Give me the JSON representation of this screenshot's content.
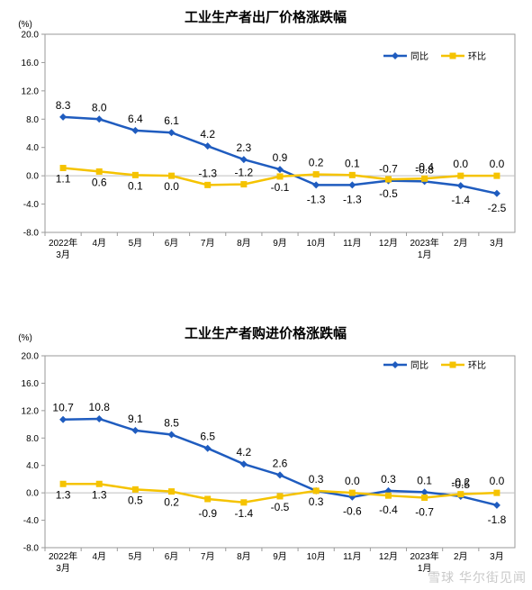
{
  "chart_data": [
    {
      "type": "line",
      "title": "工业生产者出厂价格涨跌幅",
      "unit": "(%)",
      "ylim": [
        -8.0,
        20.0
      ],
      "yticks": [
        "20.0",
        "16.0",
        "12.0",
        "8.0",
        "4.0",
        "0.0",
        "-4.0",
        "-8.0"
      ],
      "categories": [
        [
          "2022年",
          "3月"
        ],
        [
          "4月"
        ],
        [
          "5月"
        ],
        [
          "6月"
        ],
        [
          "7月"
        ],
        [
          "8月"
        ],
        [
          "9月"
        ],
        [
          "10月"
        ],
        [
          "11月"
        ],
        [
          "12月"
        ],
        [
          "2023年",
          "1月"
        ],
        [
          "2月"
        ],
        [
          "3月"
        ]
      ],
      "legend_position": "top-right",
      "series": [
        {
          "name": "同比",
          "color": "#1f5cbf",
          "marker": "diamond",
          "values": [
            8.3,
            8.0,
            6.4,
            6.1,
            4.2,
            2.3,
            0.9,
            -1.3,
            -1.3,
            -0.7,
            -0.8,
            -1.4,
            -2.5
          ],
          "labels": [
            "8.3",
            "8.0",
            "6.4",
            "6.1",
            "4.2",
            "2.3",
            "0.9",
            "-1.3",
            "-1.3",
            "-0.7",
            "-0.8",
            "-1.4",
            "-2.5"
          ]
        },
        {
          "name": "环比",
          "color": "#f5c300",
          "marker": "square",
          "values": [
            1.1,
            0.6,
            0.1,
            0.0,
            -1.3,
            -1.2,
            -0.1,
            0.2,
            0.1,
            -0.5,
            -0.4,
            0.0,
            0.0
          ],
          "labels": [
            "1.1",
            "0.6",
            "0.1",
            "0.0",
            "-1.3",
            "-1.2",
            "-0.1",
            "0.2",
            "0.1",
            "-0.5",
            "-0.4",
            "0.0",
            "0.0"
          ]
        }
      ]
    },
    {
      "type": "line",
      "title": "工业生产者购进价格涨跌幅",
      "unit": "(%)",
      "ylim": [
        -8.0,
        20.0
      ],
      "yticks": [
        "20.0",
        "16.0",
        "12.0",
        "8.0",
        "4.0",
        "0.0",
        "-4.0",
        "-8.0"
      ],
      "categories": [
        [
          "2022年",
          "3月"
        ],
        [
          "4月"
        ],
        [
          "5月"
        ],
        [
          "6月"
        ],
        [
          "7月"
        ],
        [
          "8月"
        ],
        [
          "9月"
        ],
        [
          "10月"
        ],
        [
          "11月"
        ],
        [
          "12月"
        ],
        [
          "2023年",
          "1月"
        ],
        [
          "2月"
        ],
        [
          "3月"
        ]
      ],
      "legend_position": "top-right",
      "series": [
        {
          "name": "同比",
          "color": "#1f5cbf",
          "marker": "diamond",
          "values": [
            10.7,
            10.8,
            9.1,
            8.5,
            6.5,
            4.2,
            2.6,
            0.3,
            -0.6,
            0.3,
            0.1,
            -0.5,
            -1.8
          ],
          "labels": [
            "10.7",
            "10.8",
            "9.1",
            "8.5",
            "6.5",
            "4.2",
            "2.6",
            "0.3",
            "-0.6",
            "0.3",
            "0.1",
            "-0.5",
            "-1.8"
          ]
        },
        {
          "name": "环比",
          "color": "#f5c300",
          "marker": "square",
          "values": [
            1.3,
            1.3,
            0.5,
            0.2,
            -0.9,
            -1.4,
            -0.5,
            0.3,
            0.0,
            -0.4,
            -0.7,
            -0.2,
            0.0
          ],
          "labels": [
            "1.3",
            "1.3",
            "0.5",
            "0.2",
            "-0.9",
            "-1.4",
            "-0.5",
            "0.3",
            "0.0",
            "-0.4",
            "-0.7",
            "-0.2",
            "0.0"
          ]
        }
      ]
    }
  ],
  "watermark": "雪球 华尔街见闻"
}
